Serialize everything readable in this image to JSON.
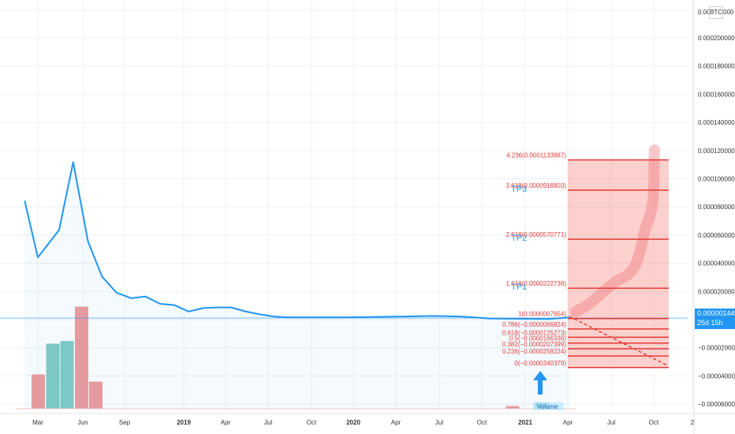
{
  "symbol_currency": "BTC",
  "price_axis": {
    "labels": [
      "0.0002200000",
      "0.0002000000",
      "0.0001800000",
      "0.0001600000",
      "0.0001400000",
      "0.0001200000",
      "0.0001000000",
      "0.0000800000",
      "0.0000600000",
      "0.0000400000",
      "0.0000200000",
      "0.0000000000",
      "−0.0000200000",
      "−0.0000400000",
      "−0.0000600000"
    ],
    "values": [
      0.00022,
      0.0002,
      0.00018,
      0.00016,
      0.00014,
      0.00012,
      0.0001,
      8e-05,
      6e-05,
      4e-05,
      2e-05,
      0,
      -2e-05,
      -4e-05,
      -6e-05
    ],
    "top_partial_label": "0.00",
    "top_partial_suffix": "000"
  },
  "time_axis": {
    "labels": [
      "Mar",
      "Jun",
      "Sep",
      "2019",
      "Apr",
      "Jul",
      "Oct",
      "2020",
      "Apr",
      "Jul",
      "Oct",
      "2021",
      "Apr",
      "Jul",
      "Oct",
      "2"
    ],
    "bold": [
      false,
      false,
      false,
      true,
      false,
      false,
      false,
      true,
      false,
      false,
      false,
      true,
      false,
      false,
      false,
      false
    ]
  },
  "current_price": {
    "value": "0.0000014490",
    "countdown": "25d 15h"
  },
  "fib_levels": [
    {
      "label": "4.236(0.0001133887)",
      "value": 0.0001133887
    },
    {
      "label": "3.618(0.0000918803)",
      "value": 9.18803e-05
    },
    {
      "label": "2.618(0.0000570771)",
      "value": 5.70771e-05
    },
    {
      "label": "1.618(0.0000222738)",
      "value": 2.22738e-05
    },
    {
      "label": "1(0.0000007654)",
      "value": 7.654e-07
    },
    {
      "label": "0.786(−0.0000066824)",
      "value": -6.6824e-06
    },
    {
      "label": "0.618(−0.0000125273)",
      "value": -1.25273e-05
    },
    {
      "label": "0.5(−0.0000166336)",
      "value": -1.66336e-05
    },
    {
      "label": "0.382(−0.0000207399)",
      "value": -2.07399e-05
    },
    {
      "label": "0.236(−0.0000258224)",
      "value": -2.58224e-05
    },
    {
      "label": "0(−0.0000340379)",
      "value": -3.40379e-05
    }
  ],
  "tp_labels": [
    {
      "label": "TP3",
      "level_index": 1
    },
    {
      "label": "TP2",
      "level_index": 2
    },
    {
      "label": "TP1",
      "level_index": 3
    }
  ],
  "volume_label": "Volume",
  "colors": {
    "line": "#2196f3",
    "fib_line": "#e53935",
    "fib_zone": "rgba(244,67,54,0.25)",
    "projection": "rgba(239,100,110,0.35)",
    "vol_up": "#80cbc4",
    "vol_down": "#ef9a9a",
    "tp_text": "#2196f3",
    "arrow": "#2196f3"
  },
  "chart_data": {
    "type": "line",
    "series": [
      {
        "x": [
          "2018-02-01",
          "2018-03-01",
          "2018-04-15",
          "2018-05-15",
          "2018-06-15",
          "2018-07-15",
          "2018-08-15",
          "2018-09-15",
          "2018-10-15",
          "2018-11-15",
          "2018-12-15",
          "2019-01-15",
          "2019-02-15",
          "2019-03-15",
          "2019-04-15",
          "2019-05-15",
          "2019-06-15",
          "2019-07-15",
          "2019-08-15",
          "2019-10-15",
          "2019-12-15",
          "2020-02-15",
          "2020-04-15",
          "2020-06-15",
          "2020-08-15",
          "2020-10-15",
          "2020-12-15",
          "2021-02-15",
          "2021-04-01"
        ],
        "values": [
          8.44e-05,
          4.42e-05,
          6.36e-05,
          0.0001118,
          5.59e-05,
          3.06e-05,
          1.91e-05,
          1.52e-05,
          1.64e-05,
          1.12e-05,
          1.03e-05,
          5.7e-06,
          8.2e-06,
          8.6e-06,
          8.6e-06,
          5.8e-06,
          3.7e-06,
          2.2e-06,
          1.6e-06,
          1.6e-06,
          1.6e-06,
          1.9e-06,
          2.2e-06,
          2.6e-06,
          2.2e-06,
          8e-07,
          6e-07,
          4e-07,
          1.5e-06
        ]
      }
    ],
    "ylim": [
      -6e-05,
      0.00022
    ],
    "volume_bars": [
      {
        "x": "2018-02",
        "value": 0.5,
        "up": false
      },
      {
        "x": "2018-03",
        "value": 38,
        "up": false
      },
      {
        "x": "2018-04",
        "value": 72,
        "up": true
      },
      {
        "x": "2018-05",
        "value": 75,
        "up": true
      },
      {
        "x": "2018-06",
        "value": 113,
        "up": false
      },
      {
        "x": "2018-07",
        "value": 30,
        "up": false
      },
      {
        "x": "2020-12",
        "value": 3,
        "up": false
      },
      {
        "x": "2021-02",
        "value": 7,
        "up": true
      }
    ]
  }
}
